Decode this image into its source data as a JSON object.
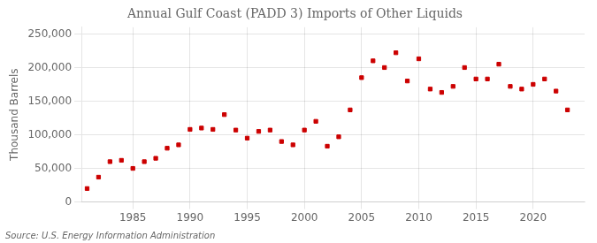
{
  "chart_data": {
    "type": "scatter",
    "title": "Annual Gulf Coast (PADD 3) Imports of Other Liquids",
    "ylabel": "Thousand Barrels",
    "annotation": "Source: U.S. Energy Information Administration",
    "x": [
      1981,
      1982,
      1983,
      1984,
      1985,
      1986,
      1987,
      1988,
      1989,
      1990,
      1991,
      1992,
      1993,
      1994,
      1995,
      1996,
      1997,
      1998,
      1999,
      2000,
      2001,
      2002,
      2003,
      2004,
      2005,
      2006,
      2007,
      2008,
      2009,
      2010,
      2011,
      2012,
      2013,
      2014,
      2015,
      2016,
      2017,
      2018,
      2019,
      2020,
      2021,
      2022,
      2023
    ],
    "values": [
      20000,
      37000,
      60000,
      62000,
      50000,
      60000,
      65000,
      80000,
      85000,
      108000,
      110000,
      108000,
      130000,
      107000,
      95000,
      105000,
      107000,
      90000,
      85000,
      107000,
      120000,
      83000,
      97000,
      137000,
      185000,
      210000,
      200000,
      222000,
      180000,
      213000,
      168000,
      163000,
      172000,
      200000,
      183000,
      183000,
      205000,
      172000,
      168000,
      175000,
      183000,
      165000,
      137000
    ],
    "color": "#cc0000",
    "marker": "square",
    "xlim": [
      1980.5,
      2024.5
    ],
    "xticks": [
      1985,
      1990,
      1995,
      2000,
      2005,
      2010,
      2015,
      2020
    ],
    "ylim": [
      0,
      260000
    ],
    "yticks": [
      0,
      {
        "value": 50000,
        "label": "50,000"
      },
      {
        "value": 100000,
        "label": "100,000"
      },
      {
        "value": 150000,
        "label": "150,000"
      },
      {
        "value": 200000,
        "label": "200,000"
      },
      {
        "value": 250000,
        "label": "250,000"
      }
    ],
    "grid": true
  }
}
